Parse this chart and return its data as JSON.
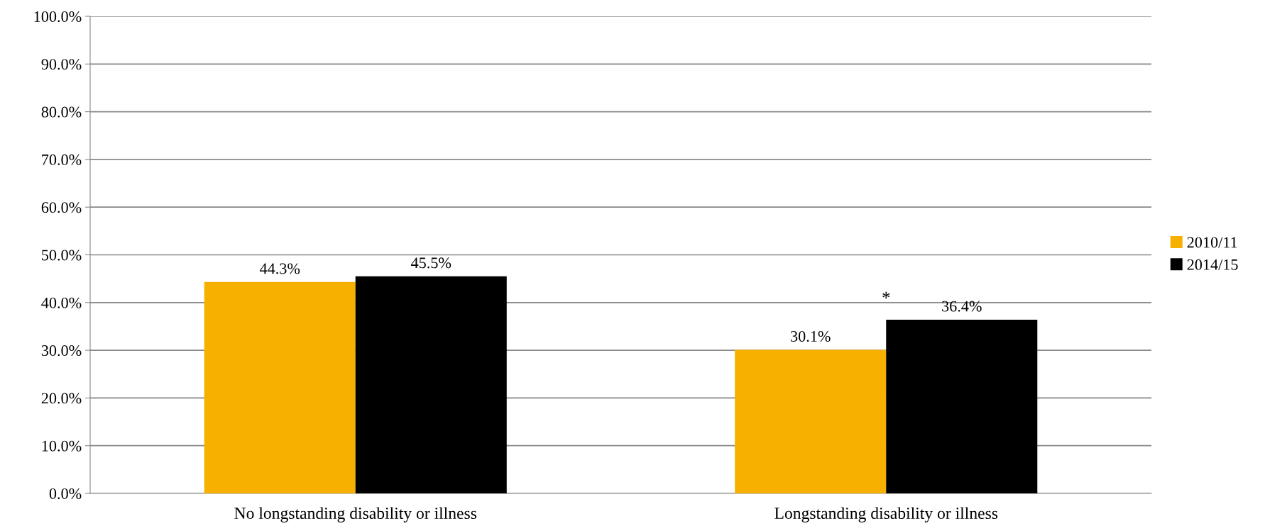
{
  "chart_data": {
    "type": "bar",
    "categories": [
      "No longstanding disability or illness",
      "Longstanding disability or illness"
    ],
    "series": [
      {
        "name": "2010/11",
        "color": "#f8b000",
        "values": [
          44.3,
          30.1
        ],
        "value_labels": [
          "44.3%",
          "30.1%"
        ]
      },
      {
        "name": "2014/15",
        "color": "#000000",
        "values": [
          45.5,
          36.4
        ],
        "value_labels": [
          "45.5%",
          "36.4%"
        ]
      }
    ],
    "ylim": [
      0,
      100
    ],
    "yticks": [
      {
        "value": 0,
        "label": "0.0%"
      },
      {
        "value": 10,
        "label": "10.0%"
      },
      {
        "value": 20,
        "label": "20.0%"
      },
      {
        "value": 30,
        "label": "30.0%"
      },
      {
        "value": 40,
        "label": "40.0%"
      },
      {
        "value": 50,
        "label": "50.0%"
      },
      {
        "value": 60,
        "label": "60.0%"
      },
      {
        "value": 70,
        "label": "70.0%"
      },
      {
        "value": 80,
        "label": "80.0%"
      },
      {
        "value": 90,
        "label": "90.0%"
      },
      {
        "value": 100,
        "label": "100.0%"
      }
    ],
    "annotations": [
      "*"
    ],
    "grid": "y",
    "legend": "right"
  }
}
